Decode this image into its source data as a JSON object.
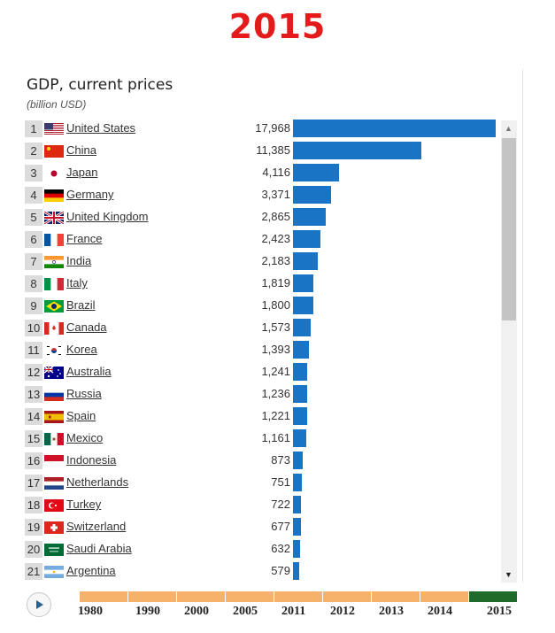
{
  "year_title": "2015",
  "colors": {
    "bar": "#1a74c6",
    "timeline_past": "#f6b26b",
    "timeline_current": "#1e6b2a",
    "title": "#e31b1b"
  },
  "chart_data": {
    "type": "bar",
    "title": "GDP, current prices",
    "subtitle": "(billion USD)",
    "orientation": "horizontal",
    "xlim": [
      0,
      17968
    ],
    "rows": [
      {
        "rank": "1",
        "country": "United States",
        "flag": "us",
        "value": 17968,
        "label": "17,968"
      },
      {
        "rank": "2",
        "country": "China",
        "flag": "cn",
        "value": 11385,
        "label": "11,385"
      },
      {
        "rank": "3",
        "country": "Japan",
        "flag": "jp",
        "value": 4116,
        "label": "4,116"
      },
      {
        "rank": "4",
        "country": "Germany",
        "flag": "de",
        "value": 3371,
        "label": "3,371"
      },
      {
        "rank": "5",
        "country": "United Kingdom",
        "flag": "gb",
        "value": 2865,
        "label": "2,865"
      },
      {
        "rank": "6",
        "country": "France",
        "flag": "fr",
        "value": 2423,
        "label": "2,423"
      },
      {
        "rank": "7",
        "country": "India",
        "flag": "in",
        "value": 2183,
        "label": "2,183"
      },
      {
        "rank": "8",
        "country": "Italy",
        "flag": "it",
        "value": 1819,
        "label": "1,819"
      },
      {
        "rank": "9",
        "country": "Brazil",
        "flag": "br",
        "value": 1800,
        "label": "1,800"
      },
      {
        "rank": "10",
        "country": "Canada",
        "flag": "ca",
        "value": 1573,
        "label": "1,573"
      },
      {
        "rank": "11",
        "country": "Korea",
        "flag": "kr",
        "value": 1393,
        "label": "1,393"
      },
      {
        "rank": "12",
        "country": "Australia",
        "flag": "au",
        "value": 1241,
        "label": "1,241"
      },
      {
        "rank": "13",
        "country": "Russia",
        "flag": "ru",
        "value": 1236,
        "label": "1,236"
      },
      {
        "rank": "14",
        "country": "Spain",
        "flag": "es",
        "value": 1221,
        "label": "1,221"
      },
      {
        "rank": "15",
        "country": "Mexico",
        "flag": "mx",
        "value": 1161,
        "label": "1,161"
      },
      {
        "rank": "16",
        "country": "Indonesia",
        "flag": "id",
        "value": 873,
        "label": "873"
      },
      {
        "rank": "17",
        "country": "Netherlands",
        "flag": "nl",
        "value": 751,
        "label": "751"
      },
      {
        "rank": "18",
        "country": "Turkey",
        "flag": "tr",
        "value": 722,
        "label": "722"
      },
      {
        "rank": "19",
        "country": "Switzerland",
        "flag": "ch",
        "value": 677,
        "label": "677"
      },
      {
        "rank": "20",
        "country": "Saudi Arabia",
        "flag": "sa",
        "value": 632,
        "label": "632"
      },
      {
        "rank": "21",
        "country": "Argentina",
        "flag": "ar",
        "value": 579,
        "label": "579"
      }
    ]
  },
  "timeline": {
    "years": [
      "1980",
      "1990",
      "2000",
      "2005",
      "2011",
      "2012",
      "2013",
      "2014",
      "2015"
    ],
    "current": "2015"
  },
  "scrollbar": {
    "up_icon": "▲",
    "down_icon": "▼"
  },
  "play_icon": "play-icon"
}
